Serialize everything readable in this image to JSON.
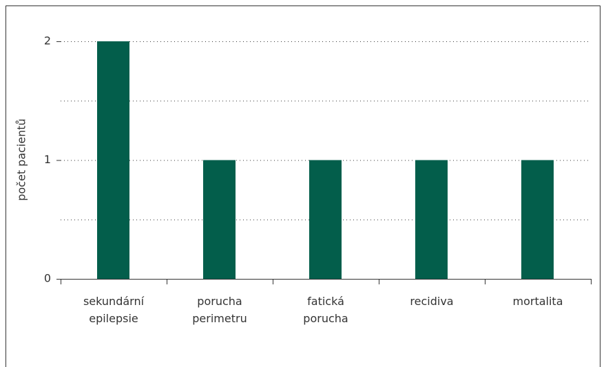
{
  "chart_data": {
    "type": "bar",
    "y_label": "počet pacientů",
    "categories": [
      [
        "sekundární",
        "epilepsie"
      ],
      [
        "porucha",
        "perimetru"
      ],
      [
        "fatická",
        "porucha"
      ],
      [
        "recidiva"
      ],
      [
        "mortalita"
      ]
    ],
    "values": [
      2,
      1,
      1,
      1,
      1
    ],
    "color": "#035e4b",
    "ylim": [
      0,
      2
    ],
    "yticks": [
      0,
      1,
      2
    ],
    "minor_yticks": [
      0.5,
      1.5
    ],
    "grid": true
  }
}
